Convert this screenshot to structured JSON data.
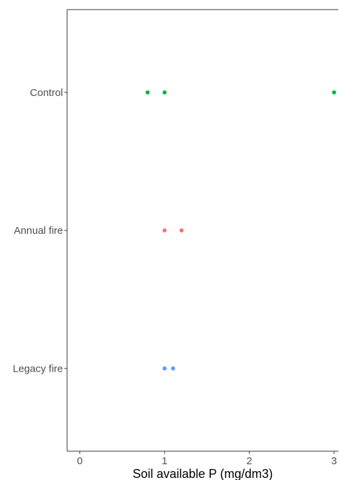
{
  "chart_data": {
    "type": "scatter",
    "xlabel": "Soil available P (mg/dm3)",
    "ylabel": "",
    "xlim": [
      -0.15,
      3.05
    ],
    "xticks": [
      0,
      1,
      2,
      3
    ],
    "categories": [
      "Control",
      "Annual fire",
      "Legacy fire"
    ],
    "grid": false,
    "series": [
      {
        "category": "Control",
        "color": "#00ba38",
        "values": [
          0.8,
          1.0,
          3.0
        ]
      },
      {
        "category": "Annual fire",
        "color": "#f8766d",
        "values": [
          1.0,
          1.2
        ]
      },
      {
        "category": "Legacy fire",
        "color": "#619cff",
        "values": [
          1.0,
          1.1
        ]
      }
    ]
  }
}
